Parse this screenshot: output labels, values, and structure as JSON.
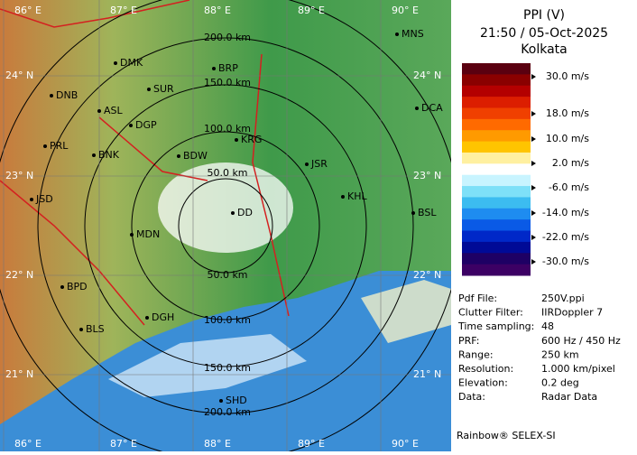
{
  "map": {
    "lon_labels": [
      "86° E",
      "87° E",
      "88° E",
      "89° E",
      "90° E"
    ],
    "lat_labels": [
      "24° N",
      "23° N",
      "22° N",
      "21° N"
    ],
    "ring_labels_north": [
      "200.0 km",
      "150.0 km",
      "100.0 km",
      "50.0 km"
    ],
    "ring_labels_south": [
      "50.0 km",
      "100.0 km",
      "150.0 km",
      "200.0 km"
    ],
    "stations": [
      "MNS",
      "DMK",
      "BRP",
      "DNB",
      "SUR",
      "ASL",
      "DGP",
      "DCA",
      "PRL",
      "BNK",
      "KRG",
      "BDW",
      "JSR",
      "KHL",
      "JSD",
      "DD",
      "MDN",
      "BSL",
      "BPD",
      "DGH",
      "BLS",
      "SHD"
    ]
  },
  "panel": {
    "title": "PPI (V)",
    "time": "21:50 / 05-Oct-2025",
    "site": "Kolkata",
    "scale_labels": [
      "30.0 m/s",
      "18.0 m/s",
      "10.0 m/s",
      "2.0 m/s",
      "-6.0 m/s",
      "-14.0 m/s",
      "-22.0 m/s",
      "-30.0 m/s"
    ],
    "info": [
      [
        "Pdf File:",
        "250V.ppi"
      ],
      [
        "Clutter Filter:",
        "IIRDoppler 7"
      ],
      [
        "Time sampling:",
        "48"
      ],
      [
        "PRF:",
        "600 Hz / 450 Hz"
      ],
      [
        "Range:",
        "250 km"
      ],
      [
        "Resolution:",
        "1.000 km/pixel"
      ],
      [
        "Elevation:",
        "0.2 deg"
      ],
      [
        "Data:",
        "Radar Data"
      ]
    ],
    "footer": "Rainbow® SELEX-SI"
  }
}
